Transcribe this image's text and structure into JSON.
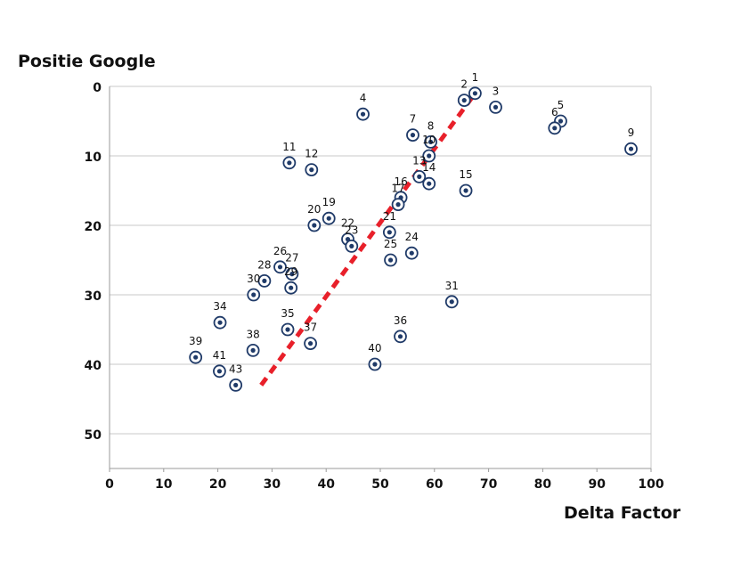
{
  "chart_data": {
    "type": "scatter",
    "title": "",
    "xlabel": "Delta Factor",
    "ylabel": "Positie Google",
    "xlim": [
      0,
      100
    ],
    "ylim": [
      0,
      55
    ],
    "y_inverted": true,
    "x_ticks": [
      "0",
      "10",
      "20",
      "30",
      "40",
      "50",
      "60",
      "70",
      "80",
      "90",
      "100"
    ],
    "y_ticks": [
      "0",
      "10",
      "20",
      "30",
      "40",
      "50"
    ],
    "grid": "horizontal",
    "legend": "none",
    "marker_color": "#1f3a68",
    "trend_color": "#e8202a",
    "trendline": {
      "style": "dashed",
      "start": [
        28,
        43
      ],
      "end": [
        67.5,
        1
      ]
    },
    "points": [
      {
        "label": "1",
        "x": 67.5,
        "y": 1
      },
      {
        "label": "2",
        "x": 65.5,
        "y": 2
      },
      {
        "label": "3",
        "x": 71.3,
        "y": 3
      },
      {
        "label": "4",
        "x": 46.8,
        "y": 4
      },
      {
        "label": "5",
        "x": 83.3,
        "y": 5
      },
      {
        "label": "6",
        "x": 82.2,
        "y": 6
      },
      {
        "label": "7",
        "x": 56,
        "y": 7
      },
      {
        "label": "8",
        "x": 59.3,
        "y": 8
      },
      {
        "label": "9",
        "x": 96.3,
        "y": 9
      },
      {
        "label": "10",
        "x": 59,
        "y": 10
      },
      {
        "label": "11",
        "x": 33.2,
        "y": 11
      },
      {
        "label": "12",
        "x": 37.3,
        "y": 12
      },
      {
        "label": "13",
        "x": 57.2,
        "y": 13
      },
      {
        "label": "14",
        "x": 59,
        "y": 14
      },
      {
        "label": "15",
        "x": 65.8,
        "y": 15
      },
      {
        "label": "16",
        "x": 53.8,
        "y": 16
      },
      {
        "label": "17",
        "x": 53.3,
        "y": 17
      },
      {
        "label": "19",
        "x": 40.5,
        "y": 19
      },
      {
        "label": "20",
        "x": 37.8,
        "y": 20
      },
      {
        "label": "21",
        "x": 51.7,
        "y": 21
      },
      {
        "label": "22",
        "x": 44,
        "y": 22
      },
      {
        "label": "23",
        "x": 44.7,
        "y": 23
      },
      {
        "label": "24",
        "x": 55.8,
        "y": 24
      },
      {
        "label": "25",
        "x": 51.9,
        "y": 25
      },
      {
        "label": "26",
        "x": 31.5,
        "y": 26
      },
      {
        "label": "27",
        "x": 33.7,
        "y": 27
      },
      {
        "label": "28",
        "x": 28.6,
        "y": 28
      },
      {
        "label": "29",
        "x": 33.5,
        "y": 29
      },
      {
        "label": "30",
        "x": 26.6,
        "y": 30
      },
      {
        "label": "31",
        "x": 63.2,
        "y": 31
      },
      {
        "label": "34",
        "x": 20.4,
        "y": 34
      },
      {
        "label": "35",
        "x": 32.9,
        "y": 35
      },
      {
        "label": "36",
        "x": 53.7,
        "y": 36
      },
      {
        "label": "37",
        "x": 37.1,
        "y": 37
      },
      {
        "label": "38",
        "x": 26.5,
        "y": 38
      },
      {
        "label": "39",
        "x": 15.9,
        "y": 39
      },
      {
        "label": "40",
        "x": 49,
        "y": 40
      },
      {
        "label": "41",
        "x": 20.3,
        "y": 41
      },
      {
        "label": "43",
        "x": 23.3,
        "y": 43
      }
    ]
  }
}
